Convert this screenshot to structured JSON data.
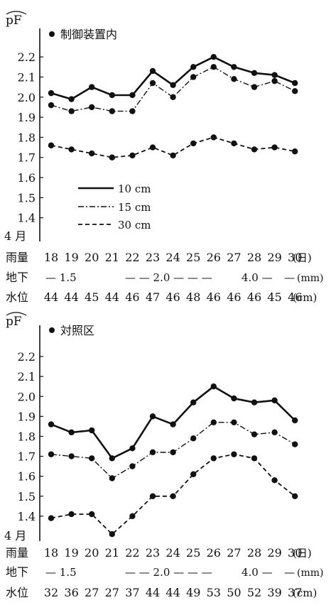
{
  "chart_data": [
    {
      "type": "line",
      "title": "制御装置内",
      "ylabel": "pF",
      "ylim": [
        1.3,
        2.25
      ],
      "yticks": [
        "2.2",
        "2.1",
        "2.0",
        "1.9",
        "1.8",
        "1.7",
        "1.6",
        "1.5",
        "1.4"
      ],
      "month_label": "4 月",
      "x": [
        "18",
        "19",
        "20",
        "21",
        "22",
        "23",
        "24",
        "25",
        "26",
        "27",
        "28",
        "29",
        "30"
      ],
      "legend_position": "center-left",
      "grid": false,
      "series": [
        {
          "name": "10 cm",
          "style": "solid",
          "values": [
            2.02,
            1.99,
            2.05,
            2.01,
            2.01,
            2.13,
            2.06,
            2.15,
            2.2,
            2.15,
            2.12,
            2.11,
            2.07
          ]
        },
        {
          "name": "15 cm",
          "style": "dashdot",
          "values": [
            1.96,
            1.93,
            1.95,
            1.93,
            1.93,
            2.07,
            2.0,
            2.1,
            2.15,
            2.09,
            2.05,
            2.08,
            2.03
          ]
        },
        {
          "name": "30 cm",
          "style": "dashed",
          "values": [
            1.76,
            1.74,
            1.72,
            1.7,
            1.71,
            1.75,
            1.71,
            1.77,
            1.8,
            1.77,
            1.74,
            1.75,
            1.73
          ]
        }
      ],
      "table": {
        "rain": {
          "label": "雨量",
          "values": [
            "18",
            "19",
            "20",
            "21",
            "22",
            "23",
            "24",
            "25",
            "26",
            "27",
            "28",
            "29",
            "30"
          ],
          "unit": "(日)"
        },
        "underground": {
          "label": "地下",
          "text_a": "— 1.5",
          "text_b": "— — 2.0 — — —",
          "text_c": "4.0 —",
          "text_d": "—",
          "unit": "(mm)"
        },
        "water": {
          "label": "水位",
          "values": [
            "44",
            "44",
            "45",
            "44",
            "46",
            "47",
            "46",
            "48",
            "46",
            "46",
            "46",
            "45",
            "46"
          ],
          "unit": "(cm)"
        }
      }
    },
    {
      "type": "line",
      "title": "対照区",
      "ylabel": "pF",
      "ylim": [
        1.3,
        2.25
      ],
      "yticks": [
        "2.2",
        "2.1",
        "2.0",
        "1.9",
        "1.8",
        "1.7",
        "1.6",
        "1.5",
        "1.4"
      ],
      "month_label": "4 月",
      "x": [
        "18",
        "19",
        "20",
        "21",
        "22",
        "23",
        "24",
        "25",
        "26",
        "27",
        "28",
        "29",
        "30"
      ],
      "grid": false,
      "series": [
        {
          "style": "solid",
          "values": [
            1.86,
            1.82,
            1.83,
            1.69,
            1.74,
            1.9,
            1.86,
            1.97,
            2.05,
            1.99,
            1.97,
            1.98,
            1.88
          ]
        },
        {
          "style": "dashdot",
          "values": [
            1.71,
            1.7,
            1.69,
            1.59,
            1.65,
            1.72,
            1.72,
            1.79,
            1.87,
            1.87,
            1.81,
            1.82,
            1.76
          ]
        },
        {
          "style": "dashed",
          "values": [
            1.39,
            1.41,
            1.41,
            1.31,
            1.4,
            1.5,
            1.5,
            1.61,
            1.69,
            1.71,
            1.69,
            1.58,
            1.5
          ]
        }
      ],
      "table": {
        "rain": {
          "label": "雨量",
          "values": [
            "18",
            "19",
            "20",
            "21",
            "22",
            "23",
            "24",
            "25",
            "26",
            "27",
            "28",
            "29",
            "30"
          ],
          "unit": "(日)"
        },
        "underground": {
          "label": "地下",
          "text_a": "— 1.5",
          "text_b": "— — 2.0 — — —",
          "text_c": "4.0 —",
          "text_d": "—",
          "unit": "(mm)"
        },
        "water": {
          "label": "水位",
          "values": [
            "32",
            "36",
            "27",
            "27",
            "37",
            "44",
            "44",
            "49",
            "53",
            "50",
            "52",
            "39",
            "37"
          ],
          "unit": "(cm)"
        }
      }
    }
  ]
}
